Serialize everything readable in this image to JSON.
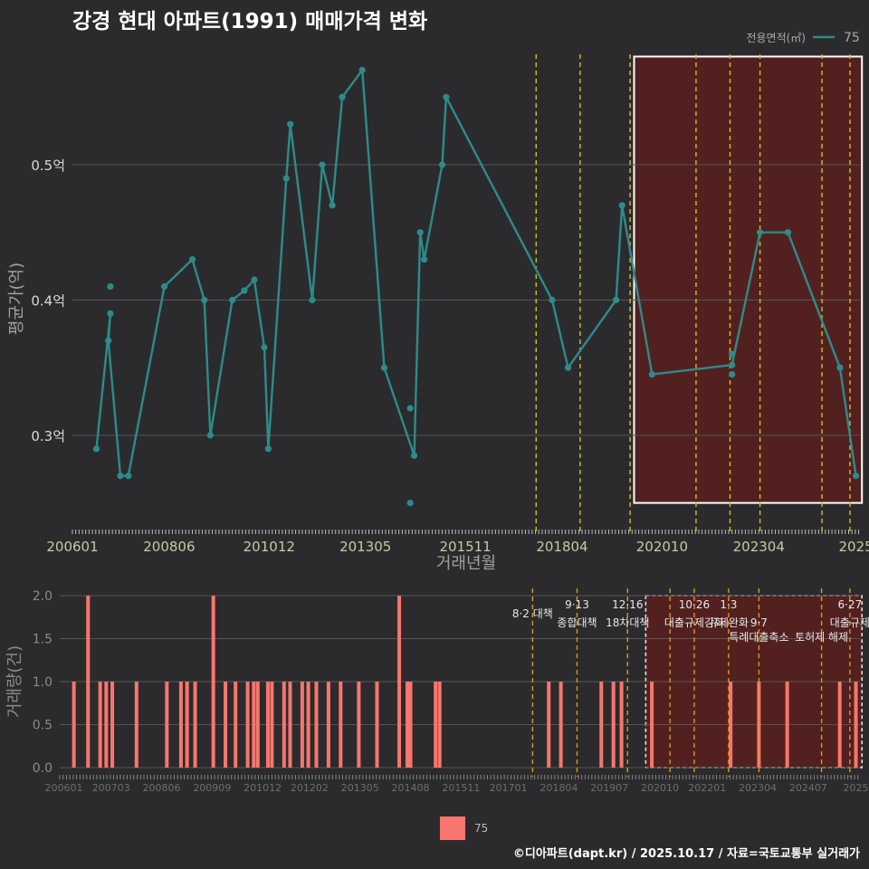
{
  "title": "강경 현대 아파트(1991) 매매가격 변화",
  "footer": "©디아파트(dapt.kr) / 2025.10.17 / 자료=국토교통부 실거래가",
  "colors": {
    "background": "#2b2b2d",
    "line": "#2e8b8b",
    "bar": "#f8766d",
    "policy_line": "#d4c20a",
    "highlight_fill": "#5a1f1f",
    "grid": "#555555",
    "axis_text": "#c8c8a0"
  },
  "legend_top": {
    "title": "전용면적(㎡)",
    "label": "75"
  },
  "legend_bottom": {
    "label": "75"
  },
  "chart_data": [
    {
      "type": "line",
      "title": "",
      "xlabel": "거래년월",
      "ylabel": "평균가(억)",
      "xlim": [
        2006.0,
        2025.7
      ],
      "ylim": [
        0.235,
        0.585
      ],
      "x_ticks": [
        {
          "x": 2006.0,
          "label": "200601"
        },
        {
          "x": 2008.42,
          "label": "200806"
        },
        {
          "x": 2010.92,
          "label": "201012"
        },
        {
          "x": 2013.33,
          "label": "201305"
        },
        {
          "x": 2015.83,
          "label": "201511"
        },
        {
          "x": 2018.25,
          "label": "201804"
        },
        {
          "x": 2020.75,
          "label": "202010"
        },
        {
          "x": 2023.17,
          "label": "202304"
        },
        {
          "x": 2025.6,
          "label": "2025"
        }
      ],
      "y_ticks": [
        {
          "y": 0.3,
          "label": "0.3억"
        },
        {
          "y": 0.4,
          "label": "0.4억"
        },
        {
          "y": 0.5,
          "label": "0.5억"
        }
      ],
      "series": [
        {
          "name": "75",
          "line": [
            [
              2006.6,
              0.29
            ],
            [
              2006.95,
              0.39
            ],
            [
              2006.9,
              0.37
            ],
            [
              2007.2,
              0.27
            ],
            [
              2007.4,
              0.27
            ],
            [
              2008.3,
              0.41
            ],
            [
              2009.0,
              0.43
            ],
            [
              2009.3,
              0.4
            ],
            [
              2009.45,
              0.3
            ],
            [
              2010.0,
              0.4
            ],
            [
              2010.3,
              0.407
            ],
            [
              2010.55,
              0.415
            ],
            [
              2010.8,
              0.365
            ],
            [
              2010.9,
              0.29
            ],
            [
              2011.35,
              0.49
            ],
            [
              2011.45,
              0.53
            ],
            [
              2012.0,
              0.4
            ],
            [
              2012.25,
              0.5
            ],
            [
              2012.5,
              0.47
            ],
            [
              2012.75,
              0.55
            ],
            [
              2013.25,
              0.57
            ],
            [
              2013.8,
              0.35
            ],
            [
              2014.55,
              0.285
            ],
            [
              2014.7,
              0.45
            ],
            [
              2014.8,
              0.43
            ],
            [
              2015.25,
              0.5
            ],
            [
              2015.35,
              0.55
            ],
            [
              2018.0,
              0.4
            ],
            [
              2018.4,
              0.35
            ],
            [
              2019.6,
              0.4
            ],
            [
              2019.75,
              0.47
            ],
            [
              2020.5,
              0.345
            ],
            [
              2022.5,
              0.352
            ],
            [
              2023.2,
              0.45
            ],
            [
              2023.9,
              0.45
            ],
            [
              2025.2,
              0.35
            ],
            [
              2025.6,
              0.27
            ]
          ],
          "extra_points": [
            [
              2006.95,
              0.41
            ],
            [
              2014.45,
              0.32
            ],
            [
              2014.45,
              0.25
            ],
            [
              2022.5,
              0.36
            ],
            [
              2022.5,
              0.345
            ]
          ]
        }
      ],
      "policy_lines": [
        2017.6,
        2018.7,
        2019.95,
        2021.6,
        2022.45,
        2023.2,
        2024.75,
        2025.45
      ],
      "highlight": {
        "x_start": 2020.05,
        "x_end": 2025.75,
        "y_start": 0.25,
        "y_end": 0.58
      }
    },
    {
      "type": "bar",
      "title": "",
      "xlabel": "",
      "ylabel": "거래량(건)",
      "xlim": [
        2005.9,
        2025.7
      ],
      "ylim": [
        0,
        2.0
      ],
      "x_ticks": [
        {
          "x": 2006.0,
          "label": "200601"
        },
        {
          "x": 2007.17,
          "label": "200703"
        },
        {
          "x": 2008.42,
          "label": "200806"
        },
        {
          "x": 2009.67,
          "label": "200909"
        },
        {
          "x": 2010.92,
          "label": "201012"
        },
        {
          "x": 2012.08,
          "label": "201202"
        },
        {
          "x": 2013.33,
          "label": "201305"
        },
        {
          "x": 2014.58,
          "label": "201408"
        },
        {
          "x": 2015.83,
          "label": "201511"
        },
        {
          "x": 2017.0,
          "label": "201701"
        },
        {
          "x": 2018.25,
          "label": "201804"
        },
        {
          "x": 2019.5,
          "label": "201907"
        },
        {
          "x": 2020.75,
          "label": "202010"
        },
        {
          "x": 2021.92,
          "label": "202201"
        },
        {
          "x": 2023.17,
          "label": "202304"
        },
        {
          "x": 2024.42,
          "label": "202407"
        },
        {
          "x": 2025.6,
          "label": "2025"
        }
      ],
      "y_ticks": [
        {
          "y": 0.0,
          "label": "0.0"
        },
        {
          "y": 0.5,
          "label": "0.5"
        },
        {
          "y": 1.0,
          "label": "1.0"
        },
        {
          "y": 1.5,
          "label": "1.5"
        },
        {
          "y": 2.0,
          "label": "2.0"
        }
      ],
      "series": [
        {
          "name": "75",
          "bars": [
            [
              2006.25,
              1
            ],
            [
              2006.6,
              2
            ],
            [
              2006.9,
              1
            ],
            [
              2007.05,
              1
            ],
            [
              2007.2,
              1
            ],
            [
              2007.8,
              1
            ],
            [
              2008.55,
              1
            ],
            [
              2008.9,
              1
            ],
            [
              2009.05,
              1
            ],
            [
              2009.25,
              1
            ],
            [
              2009.7,
              2
            ],
            [
              2010.0,
              1
            ],
            [
              2010.25,
              1
            ],
            [
              2010.55,
              1
            ],
            [
              2010.7,
              1
            ],
            [
              2010.8,
              1
            ],
            [
              2011.05,
              1
            ],
            [
              2011.15,
              1
            ],
            [
              2011.45,
              1
            ],
            [
              2011.6,
              1
            ],
            [
              2011.9,
              1
            ],
            [
              2012.05,
              1
            ],
            [
              2012.25,
              1
            ],
            [
              2012.55,
              1
            ],
            [
              2012.85,
              1
            ],
            [
              2013.3,
              1
            ],
            [
              2013.75,
              1
            ],
            [
              2014.3,
              2
            ],
            [
              2014.5,
              1
            ],
            [
              2014.58,
              1
            ],
            [
              2015.2,
              1
            ],
            [
              2015.3,
              1
            ],
            [
              2018.0,
              1
            ],
            [
              2018.3,
              1
            ],
            [
              2019.3,
              1
            ],
            [
              2019.6,
              1
            ],
            [
              2019.8,
              1
            ],
            [
              2020.55,
              1
            ],
            [
              2022.5,
              1
            ],
            [
              2023.2,
              1
            ],
            [
              2023.9,
              1
            ],
            [
              2025.2,
              1
            ],
            [
              2025.6,
              1
            ]
          ]
        }
      ],
      "policy_lines": [
        2017.6,
        2018.7,
        2019.95,
        2021.0,
        2021.6,
        2022.45,
        2023.2,
        2024.75,
        2025.45
      ],
      "highlight": {
        "x_start": 2020.4,
        "x_end": 2025.75,
        "y_start": 0.0,
        "y_end": 2.0
      },
      "annotations": [
        {
          "x": 2017.6,
          "text": "8·2 대책",
          "row": 1
        },
        {
          "x": 2018.7,
          "text": "9·13",
          "row": 0
        },
        {
          "x": 2018.7,
          "text": "종합대책",
          "row": 2
        },
        {
          "x": 2019.95,
          "text": "12·16",
          "row": 0
        },
        {
          "x": 2019.95,
          "text": "18차대책",
          "row": 2
        },
        {
          "x": 2021.6,
          "text": "10·26",
          "row": 0
        },
        {
          "x": 2021.6,
          "text": "대출규제강화",
          "row": 2
        },
        {
          "x": 2022.45,
          "text": "1·3",
          "row": 0
        },
        {
          "x": 2022.45,
          "text": "규제완화",
          "row": 2
        },
        {
          "x": 2023.2,
          "text": "9·7",
          "row": 2
        },
        {
          "x": 2023.2,
          "text": "특례대출축소",
          "row": 3
        },
        {
          "x": 2024.75,
          "text": "토허제 해제",
          "row": 3
        },
        {
          "x": 2025.45,
          "text": "6·27",
          "row": 0
        },
        {
          "x": 2025.45,
          "text": "대출규제",
          "row": 2
        }
      ]
    }
  ]
}
